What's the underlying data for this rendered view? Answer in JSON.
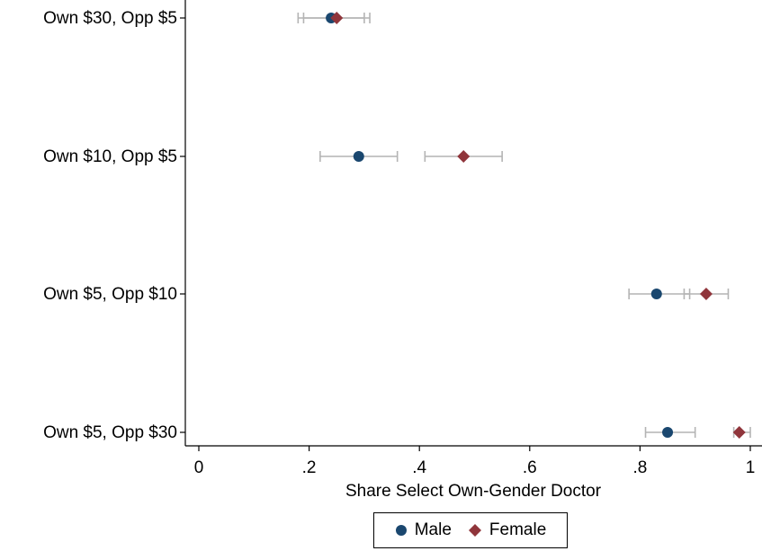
{
  "chart_data": {
    "type": "scatter",
    "xlabel": "Share Select Own-Gender Doctor",
    "ylabel": "",
    "xlim": [
      0,
      1
    ],
    "xticks": [
      {
        "value": 0,
        "label": "0"
      },
      {
        "value": 0.2,
        "label": ".2"
      },
      {
        "value": 0.4,
        "label": ".4"
      },
      {
        "value": 0.6,
        "label": ".6"
      },
      {
        "value": 0.8,
        "label": ".8"
      },
      {
        "value": 1,
        "label": "1"
      }
    ],
    "categories": [
      "Own $30, Opp $5",
      "Own $10, Opp $5",
      "Own $5, Opp $10",
      "Own $5, Opp $30"
    ],
    "grid": false,
    "legend_position": "bottom",
    "series": [
      {
        "name": "Male",
        "marker": "circle",
        "color": "#1a476f",
        "values": [
          0.24,
          0.29,
          0.83,
          0.85
        ],
        "ci_low": [
          0.18,
          0.22,
          0.78,
          0.81
        ],
        "ci_high": [
          0.3,
          0.36,
          0.89,
          0.9
        ]
      },
      {
        "name": "Female",
        "marker": "diamond",
        "color": "#90353b",
        "values": [
          0.25,
          0.48,
          0.92,
          0.98
        ],
        "ci_low": [
          0.19,
          0.41,
          0.88,
          0.97
        ],
        "ci_high": [
          0.31,
          0.55,
          0.96,
          1.0
        ]
      }
    ],
    "errorbar_color": "#b4b4b4"
  }
}
